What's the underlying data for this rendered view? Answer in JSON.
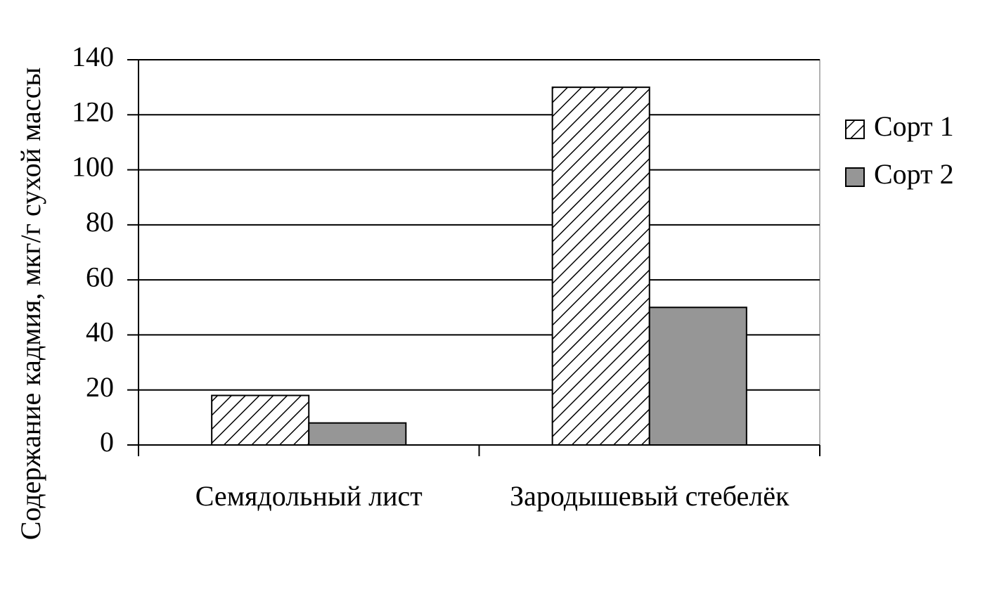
{
  "chart_data": {
    "type": "bar",
    "y_label": "Содержание кадмия, мкг/г сухой массы",
    "categories": [
      "Семядольный лист",
      "Зародышевый стебелёк"
    ],
    "series": [
      {
        "name": "Сорт 1",
        "color": "#ffffff",
        "pattern": "hatch",
        "values": [
          18,
          130
        ]
      },
      {
        "name": "Сорт 2",
        "color": "#969696",
        "values": [
          8,
          50
        ]
      }
    ],
    "ylim": [
      0,
      140
    ],
    "yticks": [
      0,
      20,
      40,
      60,
      80,
      100,
      120,
      140
    ],
    "grid": true,
    "legend": "right"
  }
}
